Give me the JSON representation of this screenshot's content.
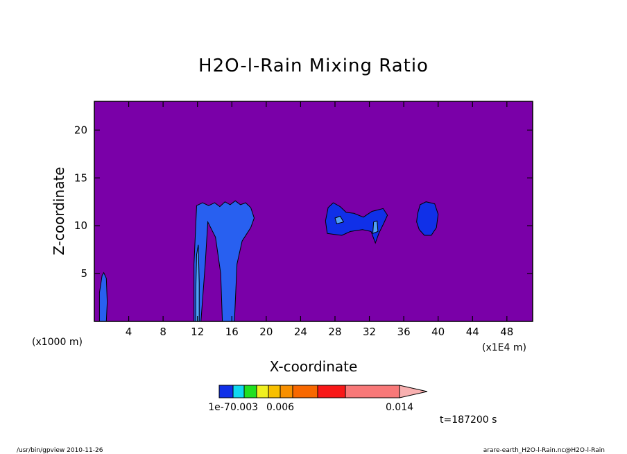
{
  "chart_data": {
    "type": "heatmap",
    "title": "H2O-l-Rain Mixing Ratio",
    "xlabel": "X-coordinate",
    "ylabel": "Z-coordinate",
    "x_unit": "(x1E4 m)",
    "y_unit": "(x1000 m)",
    "xlim": [
      0,
      51
    ],
    "ylim": [
      0,
      23
    ],
    "x_ticks": [
      4,
      8,
      12,
      16,
      20,
      24,
      28,
      32,
      36,
      40,
      44,
      48
    ],
    "y_ticks": [
      5,
      10,
      15,
      20
    ],
    "background_color": "#7a00a8",
    "colorbar": {
      "colors": [
        "#1030e8",
        "#10d8f0",
        "#20e020",
        "#f0f020",
        "#f8c000",
        "#f89000",
        "#f86800",
        "#f81818",
        "#f87878",
        "#f8b0b0"
      ],
      "labels": [
        "1e-7",
        "0.003",
        "0.006",
        "0.014"
      ]
    },
    "features": [
      {
        "name": "column-left-edge",
        "x_center": 1.0,
        "z_top": 5.0,
        "level": "1e-7"
      },
      {
        "name": "column-12",
        "x_center": 12.0,
        "z_top": 12.3,
        "level": "1e-7"
      },
      {
        "name": "column-16",
        "x_center": 15.8,
        "z_top": 12.5,
        "level": "1e-7"
      },
      {
        "name": "cloud-30",
        "x_center": 30.0,
        "z_top": 12.5,
        "level": "1e-7"
      },
      {
        "name": "cloud-39",
        "x_center": 38.7,
        "z_top": 12.4,
        "level": "1e-7"
      }
    ],
    "time_label": "t=187200 s"
  },
  "footer": {
    "left": "/usr/bin/gpview   2010-11-26",
    "right": "arare-earth_H2O-l-Rain.nc@H2O-l-Rain"
  }
}
